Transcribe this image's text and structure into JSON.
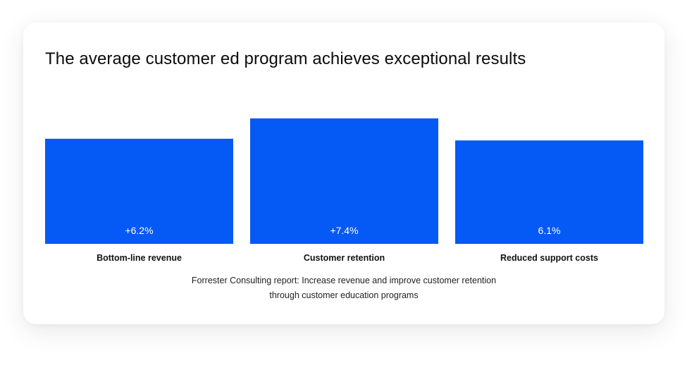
{
  "chart_data": {
    "type": "bar",
    "title": "The average customer ed program achieves exceptional results",
    "categories": [
      "Bottom-line revenue",
      "Customer retention",
      "Reduced support costs"
    ],
    "values": [
      6.2,
      7.4,
      6.1
    ],
    "value_labels": [
      "+6.2%",
      "+7.4%",
      "6.1%"
    ],
    "xlabel": "",
    "ylabel": "",
    "grid": false,
    "bar_color": "#0559f5"
  },
  "source": {
    "line1": "Forrester Consulting report: Increase revenue and improve customer retention",
    "line2": "through customer education programs"
  }
}
